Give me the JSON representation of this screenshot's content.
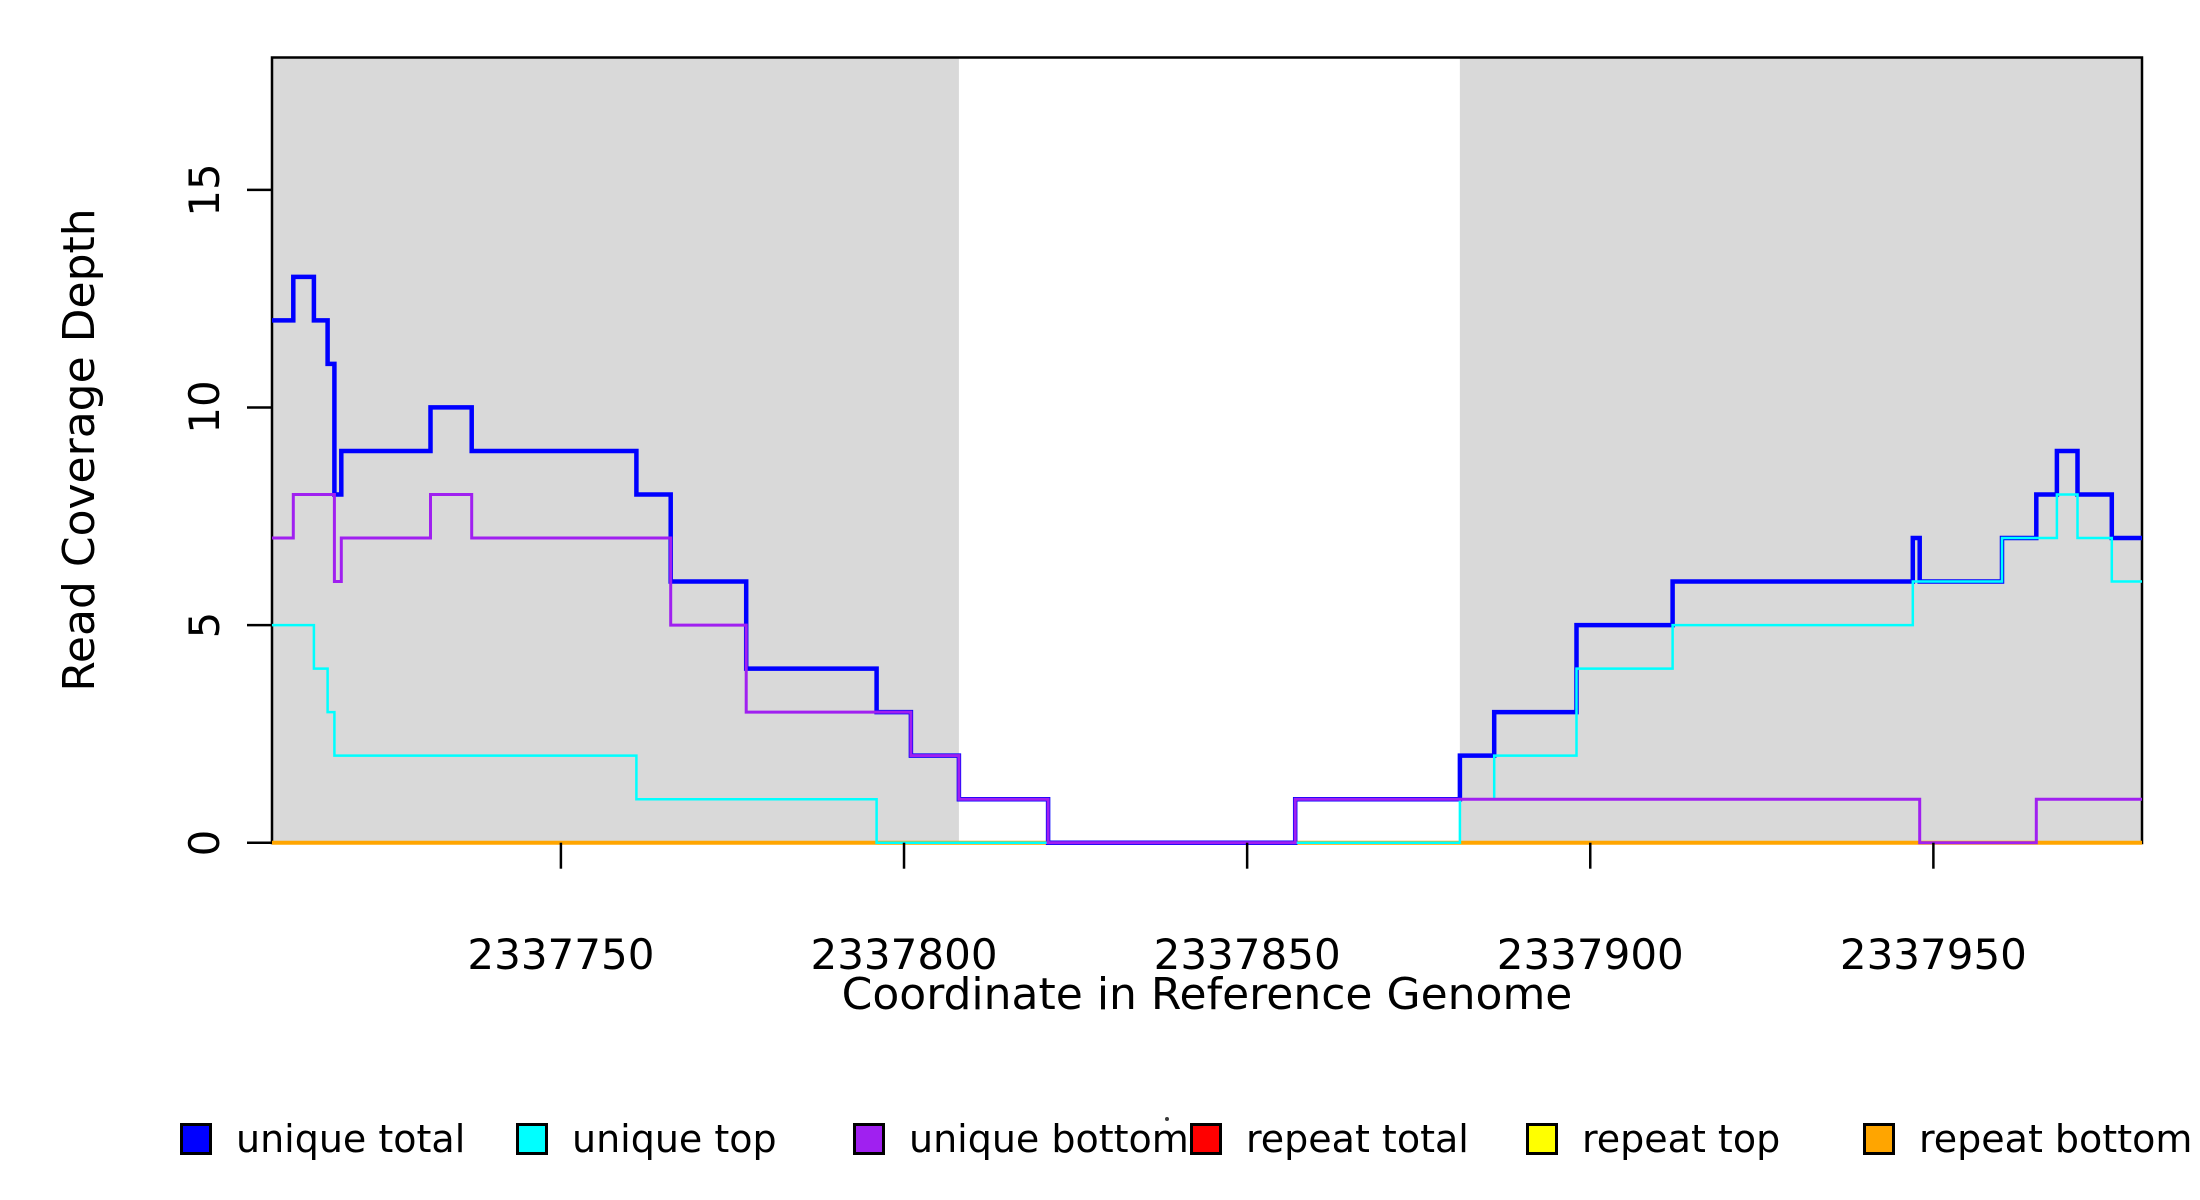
{
  "figure": {
    "background": "#ffffff",
    "plot_bg_shaded": "#d9d9d9"
  },
  "axes": {
    "x_label": "Coordinate in Reference Genome",
    "y_label": "Read Coverage Depth"
  },
  "chart_data": {
    "type": "line",
    "subtype": "step-post",
    "title": "",
    "xlabel": "Coordinate in Reference Genome",
    "ylabel": "Read Coverage Depth",
    "xlim": [
      2337707.9,
      2337980.4
    ],
    "ylim": [
      0,
      18.04
    ],
    "grid": false,
    "x_ticks": [
      {
        "value": 2337750,
        "label": "2337750"
      },
      {
        "value": 2337800,
        "label": "2337800"
      },
      {
        "value": 2337850,
        "label": "2337850"
      },
      {
        "value": 2337900,
        "label": "2337900"
      },
      {
        "value": 2337950,
        "label": "2337950"
      }
    ],
    "y_ticks": [
      {
        "value": 0,
        "label": "0"
      },
      {
        "value": 5,
        "label": "5"
      },
      {
        "value": 10,
        "label": "10"
      },
      {
        "value": 15,
        "label": "15"
      }
    ],
    "shaded_regions": [
      {
        "from": 2337707.9,
        "to": 2337808,
        "color": "#d9d9d9"
      },
      {
        "from": 2337881,
        "to": 2337980.4,
        "color": "#d9d9d9"
      }
    ],
    "x_end": 2337980.4,
    "series": [
      {
        "name": "repeat total",
        "color": "#ff0000",
        "width": 3,
        "points": [
          [
            2337707.9,
            0
          ]
        ]
      },
      {
        "name": "repeat top",
        "color": "#ffff00",
        "width": 3,
        "points": [
          [
            2337707.9,
            0
          ]
        ]
      },
      {
        "name": "repeat bottom",
        "color": "#ffa500",
        "width": 4,
        "points": [
          [
            2337707.9,
            0
          ]
        ]
      },
      {
        "name": "unique total",
        "color": "#0000ff",
        "width": 4.5,
        "points": [
          [
            2337707.9,
            12
          ],
          [
            2337711,
            13
          ],
          [
            2337714,
            12
          ],
          [
            2337716,
            11
          ],
          [
            2337717,
            8
          ],
          [
            2337718,
            9
          ],
          [
            2337731,
            10
          ],
          [
            2337737,
            9
          ],
          [
            2337761,
            8
          ],
          [
            2337766,
            6
          ],
          [
            2337777,
            4
          ],
          [
            2337796,
            3
          ],
          [
            2337801,
            2
          ],
          [
            2337808,
            1
          ],
          [
            2337821,
            0
          ],
          [
            2337857,
            1
          ],
          [
            2337881,
            2
          ],
          [
            2337886,
            3
          ],
          [
            2337898,
            5
          ],
          [
            2337912,
            6
          ],
          [
            2337947,
            7
          ],
          [
            2337948,
            6
          ],
          [
            2337960,
            7
          ],
          [
            2337965,
            8
          ],
          [
            2337968,
            9
          ],
          [
            2337971,
            8
          ],
          [
            2337976,
            7
          ]
        ]
      },
      {
        "name": "unique top",
        "color": "#00ffff",
        "width": 2.5,
        "points": [
          [
            2337707.9,
            5
          ],
          [
            2337714,
            4
          ],
          [
            2337716,
            3
          ],
          [
            2337717,
            2
          ],
          [
            2337761,
            1
          ],
          [
            2337796,
            0
          ],
          [
            2337881,
            1
          ],
          [
            2337886,
            2
          ],
          [
            2337898,
            4
          ],
          [
            2337912,
            5
          ],
          [
            2337947,
            6
          ],
          [
            2337960,
            7
          ],
          [
            2337968,
            8
          ],
          [
            2337971,
            7
          ],
          [
            2337976,
            6
          ]
        ]
      },
      {
        "name": "unique bottom",
        "color": "#a020f0",
        "width": 3,
        "points": [
          [
            2337707.9,
            7
          ],
          [
            2337711,
            8
          ],
          [
            2337717,
            6
          ],
          [
            2337718,
            7
          ],
          [
            2337731,
            8
          ],
          [
            2337737,
            7
          ],
          [
            2337766,
            5
          ],
          [
            2337777,
            3
          ],
          [
            2337801,
            2
          ],
          [
            2337808,
            1
          ],
          [
            2337821,
            0
          ],
          [
            2337857,
            1
          ],
          [
            2337948,
            0
          ],
          [
            2337965,
            1
          ]
        ]
      }
    ]
  },
  "legend": {
    "items": [
      {
        "label": "unique total",
        "color": "#0000ff"
      },
      {
        "label": "unique top",
        "color": "#00ffff"
      },
      {
        "label": "unique bottom",
        "color": "#a020f0"
      },
      {
        "label": "repeat total",
        "color": "#ff0000"
      },
      {
        "label": "repeat top",
        "color": "#ffff00"
      },
      {
        "label": "repeat bottom",
        "color": "#ffa500"
      }
    ]
  }
}
